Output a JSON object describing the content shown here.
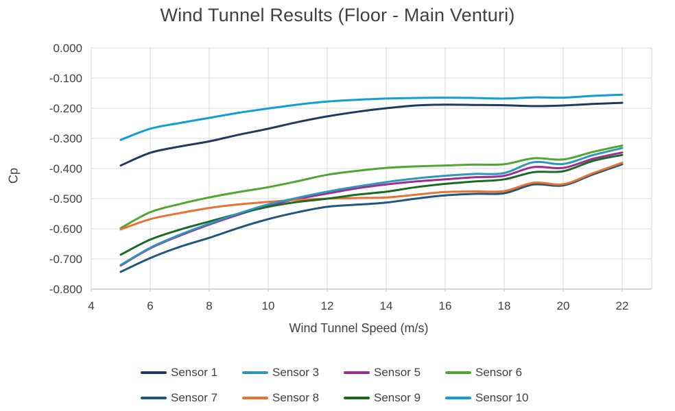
{
  "chart_data": {
    "type": "line",
    "title": "Wind Tunnel Results (Floor - Main Venturi)",
    "xlabel": "Wind Tunnel Speed (m/s)",
    "ylabel": "Cp",
    "xlim": [
      4,
      23
    ],
    "ylim": [
      -0.8,
      0
    ],
    "grid": true,
    "legend_position": "bottom",
    "x_ticks": [
      4,
      6,
      8,
      10,
      12,
      14,
      16,
      18,
      20,
      22
    ],
    "y_tick_labels": [
      "0.000",
      "-0.100",
      "-0.200",
      "-0.300",
      "-0.400",
      "-0.500",
      "-0.600",
      "-0.700",
      "-0.800"
    ],
    "x": [
      5,
      6,
      7,
      8,
      9,
      10,
      11,
      12,
      13,
      14,
      15,
      16,
      17,
      18,
      19,
      20,
      21,
      22
    ],
    "series": [
      {
        "name": "Sensor 1",
        "color": "#1F3A5F",
        "values": [
          -0.39,
          -0.348,
          -0.327,
          -0.31,
          -0.288,
          -0.268,
          -0.246,
          -0.227,
          -0.212,
          -0.2,
          -0.191,
          -0.188,
          -0.189,
          -0.19,
          -0.193,
          -0.191,
          -0.186,
          -0.182
        ]
      },
      {
        "name": "Sensor 3",
        "color": "#2E96BE",
        "values": [
          -0.72,
          -0.663,
          -0.62,
          -0.583,
          -0.549,
          -0.519,
          -0.497,
          -0.477,
          -0.46,
          -0.445,
          -0.433,
          -0.424,
          -0.418,
          -0.415,
          -0.379,
          -0.385,
          -0.356,
          -0.332
        ]
      },
      {
        "name": "Sensor 5",
        "color": "#A02B93",
        "values": [
          -0.722,
          -0.665,
          -0.623,
          -0.586,
          -0.553,
          -0.523,
          -0.501,
          -0.483,
          -0.466,
          -0.453,
          -0.443,
          -0.436,
          -0.429,
          -0.424,
          -0.395,
          -0.398,
          -0.368,
          -0.347
        ]
      },
      {
        "name": "Sensor 6",
        "color": "#4EA72E",
        "values": [
          -0.598,
          -0.545,
          -0.518,
          -0.496,
          -0.478,
          -0.462,
          -0.442,
          -0.421,
          -0.408,
          -0.398,
          -0.393,
          -0.39,
          -0.387,
          -0.386,
          -0.366,
          -0.37,
          -0.345,
          -0.324
        ]
      },
      {
        "name": "Sensor 7",
        "color": "#1E567F",
        "values": [
          -0.743,
          -0.697,
          -0.66,
          -0.63,
          -0.597,
          -0.568,
          -0.545,
          -0.527,
          -0.52,
          -0.513,
          -0.5,
          -0.489,
          -0.484,
          -0.482,
          -0.453,
          -0.456,
          -0.42,
          -0.386
        ]
      },
      {
        "name": "Sensor 8",
        "color": "#E97132",
        "values": [
          -0.602,
          -0.568,
          -0.548,
          -0.531,
          -0.519,
          -0.511,
          -0.504,
          -0.5,
          -0.498,
          -0.496,
          -0.487,
          -0.478,
          -0.476,
          -0.475,
          -0.447,
          -0.452,
          -0.416,
          -0.381
        ]
      },
      {
        "name": "Sensor 9",
        "color": "#196B24",
        "values": [
          -0.686,
          -0.636,
          -0.603,
          -0.576,
          -0.55,
          -0.527,
          -0.511,
          -0.5,
          -0.487,
          -0.477,
          -0.462,
          -0.451,
          -0.443,
          -0.436,
          -0.412,
          -0.409,
          -0.375,
          -0.355
        ]
      },
      {
        "name": "Sensor 10",
        "color": "#0F9ED5",
        "values": [
          -0.305,
          -0.268,
          -0.249,
          -0.232,
          -0.215,
          -0.201,
          -0.188,
          -0.178,
          -0.172,
          -0.168,
          -0.166,
          -0.165,
          -0.166,
          -0.168,
          -0.164,
          -0.165,
          -0.159,
          -0.155
        ]
      }
    ],
    "paint_order": [
      0,
      2,
      3,
      4,
      5,
      6,
      1,
      7
    ],
    "colors": {
      "grid": "#D9D9D9",
      "axis": "#BFBFBF",
      "text": "#404040"
    }
  }
}
